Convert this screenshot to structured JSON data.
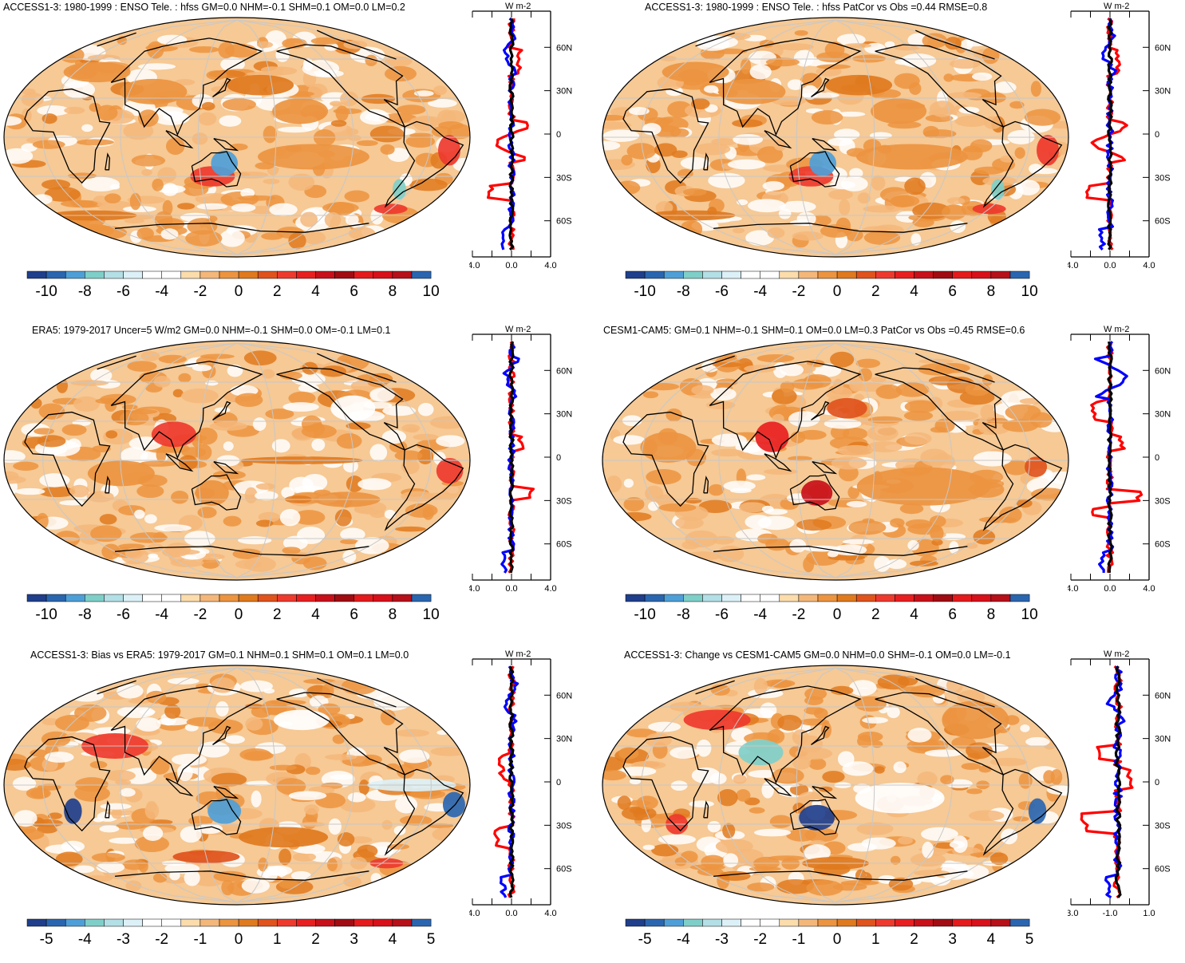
{
  "colors": {
    "scale": [
      "#14146e",
      "#1f3f8c",
      "#2a66b0",
      "#4e9fd8",
      "#7fcfc9",
      "#b3dfe6",
      "#dcf1f7",
      "#ffffff",
      "#ffffff",
      "#fbdcab",
      "#f4b77a",
      "#ec9440",
      "#e07a1e",
      "#e0531c",
      "#ee3a2e",
      "#e81f20",
      "#c8101a",
      "#a00c12",
      "#e41a1c",
      "#d8101a",
      "#b6101a",
      "#2a66b0"
    ],
    "ocean_base": "#f6c995",
    "land_line": "#000000",
    "grid_line": "#c8c8c8",
    "profile_red": "#ff0000",
    "profile_blue": "#0000ff",
    "profile_black": "#000000"
  },
  "panels": [
    {
      "title": "ACCESS1-3: 1980-1999 : ENSO Tele. : hfss GM=0.0 NHM=-0.1 SHM=0.1 OM=0.0 LM=0.2",
      "unit": "W m-2",
      "lat_labels": [
        "60N",
        "30N",
        "0",
        "30S",
        "60S"
      ],
      "xtick_labels": [
        "-4.0",
        "0.0",
        "4.0"
      ],
      "colorbar_labels": [
        "-10",
        "-8",
        "-6",
        "-4",
        "-2",
        "0",
        "2",
        "4",
        "6",
        "8",
        "10"
      ]
    },
    {
      "title": "ACCESS1-3: 1980-1999 : ENSO Tele. : hfss PatCor vs Obs =0.44 RMSE=0.8",
      "unit": "W m-2",
      "lat_labels": [
        "60N",
        "30N",
        "0",
        "30S",
        "60S"
      ],
      "xtick_labels": [
        "-4.0",
        "0.0",
        "4.0"
      ],
      "colorbar_labels": [
        "-10",
        "-8",
        "-6",
        "-4",
        "-2",
        "0",
        "2",
        "4",
        "6",
        "8",
        "10"
      ]
    },
    {
      "title": "ERA5: 1979-2017 Uncer=5 W/m2 GM=0.0 NHM=-0.1 SHM=0.0 OM=-0.1 LM=0.1",
      "unit": "W m-2",
      "lat_labels": [
        "60N",
        "30N",
        "0",
        "30S",
        "60S"
      ],
      "xtick_labels": [
        "-4.0",
        "0.0",
        "4.0"
      ],
      "colorbar_labels": [
        "-10",
        "-8",
        "-6",
        "-4",
        "-2",
        "0",
        "2",
        "4",
        "6",
        "8",
        "10"
      ]
    },
    {
      "title": "CESM1-CAM5: GM=0.1 NHM=-0.1 SHM=0.1 OM=0.0 LM=0.3 PatCor vs Obs =0.45 RMSE=0.6",
      "unit": "W m-2",
      "lat_labels": [
        "60N",
        "30N",
        "0",
        "30S",
        "60S"
      ],
      "xtick_labels": [
        "-4.0",
        "0.0",
        "4.0"
      ],
      "colorbar_labels": [
        "-10",
        "-8",
        "-6",
        "-4",
        "-2",
        "0",
        "2",
        "4",
        "6",
        "8",
        "10"
      ]
    },
    {
      "title": "ACCESS1-3: Bias vs ERA5: 1979-2017 GM=0.1 NHM=0.1 SHM=0.1 OM=0.1 LM=0.0",
      "unit": "W m-2",
      "lat_labels": [
        "60N",
        "30N",
        "0",
        "30S",
        "60S"
      ],
      "xtick_labels": [
        "-4.0",
        "0.0",
        "4.0"
      ],
      "colorbar_labels": [
        "-5",
        "-4",
        "-3",
        "-2",
        "-1",
        "0",
        "1",
        "2",
        "3",
        "4",
        "5"
      ]
    },
    {
      "title": "ACCESS1-3: Change vs CESM1-CAM5 GM=0.0 NHM=0.0 SHM=-0.1 OM=0.0 LM=-0.1",
      "unit": "W m-2",
      "lat_labels": [
        "60N",
        "30N",
        "0",
        "30S",
        "60S"
      ],
      "xtick_labels": [
        "-3.0",
        "-1.0",
        "1.0"
      ],
      "colorbar_labels": [
        "-5",
        "-4",
        "-3",
        "-2",
        "-1",
        "0",
        "1",
        "2",
        "3",
        "4",
        "5"
      ]
    }
  ]
}
